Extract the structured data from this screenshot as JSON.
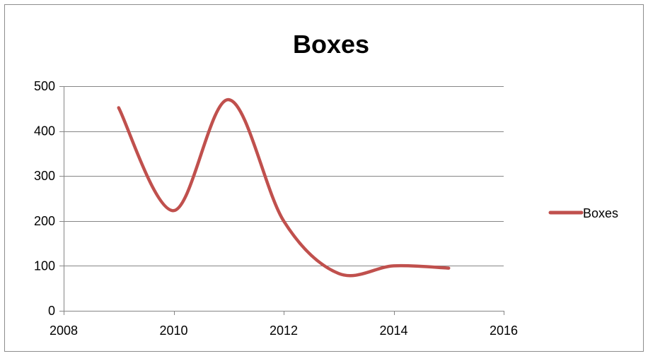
{
  "chart_data": {
    "type": "line",
    "title": "Boxes",
    "xlabel": "",
    "ylabel": "",
    "smooth": true,
    "grid": "horizontal",
    "legend_position": "right",
    "xlim": [
      2008,
      2016
    ],
    "ylim": [
      0,
      500
    ],
    "x_ticks": [
      2008,
      2010,
      2012,
      2014,
      2016
    ],
    "y_ticks": [
      0,
      100,
      200,
      300,
      400,
      500
    ],
    "series": [
      {
        "name": "Boxes",
        "color": "#C0504D",
        "x": [
          2009,
          2010,
          2011,
          2012,
          2013,
          2014,
          2015
        ],
        "y": [
          452,
          223,
          470,
          200,
          83,
          100,
          95
        ]
      }
    ]
  }
}
